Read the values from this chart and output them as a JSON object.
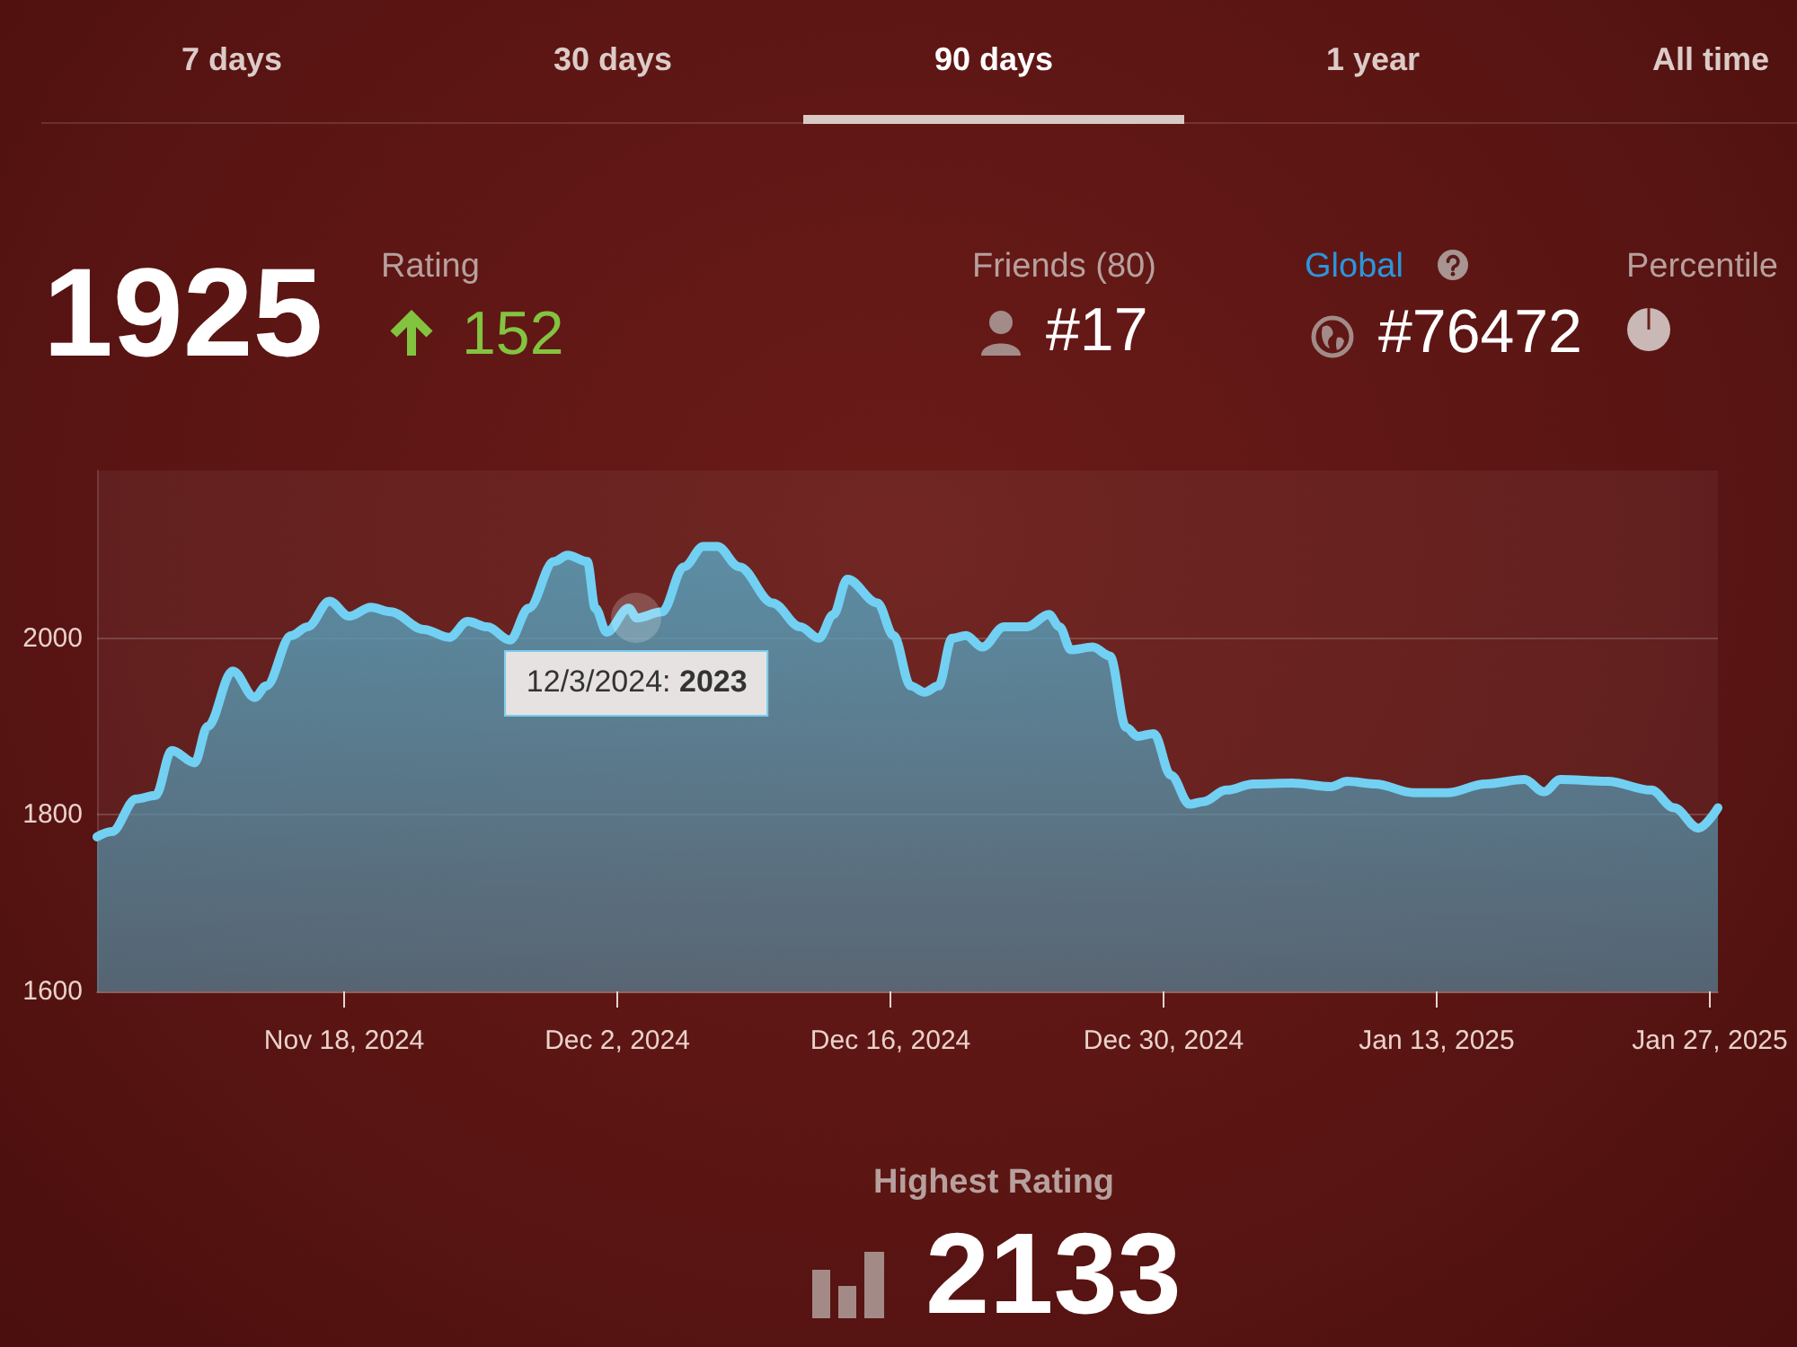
{
  "chart_data": {
    "type": "area",
    "color": "#72d0f3",
    "x": [
      "2024-11-05T08:00",
      "2024-11-06T02:00",
      "2024-11-07T08:00",
      "2024-11-08T08:00",
      "2024-11-09T04:00",
      "2024-11-10T08:00",
      "2024-11-11T00:00",
      "2024-11-12T07:00",
      "2024-11-13T10:00",
      "2024-11-14T00:00",
      "2024-11-15T07:00",
      "2024-11-16T03:00",
      "2024-11-17T06:00",
      "2024-11-18T06:00",
      "2024-11-19T09:00",
      "2024-11-20T09:00",
      "2024-11-22T02:00",
      "2024-11-23T09:00",
      "2024-11-24T08:00",
      "2024-11-25T08:00",
      "2024-11-26T12:00",
      "2024-11-27T11:00",
      "2024-11-28T18:00",
      "2024-11-29T11:00",
      "2024-11-30T11:00",
      "2024-11-30T21:00",
      "2024-12-01T11:00",
      "2024-12-02T14:00",
      "2024-12-03T00:00",
      "2024-12-04T07:00",
      "2024-12-05T10:00",
      "2024-12-06T10:00",
      "2024-12-07T03:00",
      "2024-12-08T06:00",
      "2024-12-09T23:00",
      "2024-12-11T09:00",
      "2024-12-12T08:00",
      "2024-12-13T02:00",
      "2024-12-13T19:00",
      "2024-12-15T08:00",
      "2024-12-16T04:00",
      "2024-12-17T01:00",
      "2024-12-17T18:00",
      "2024-12-18T11:00",
      "2024-12-19T04:00",
      "2024-12-19T21:00",
      "2024-12-20T17:00",
      "2024-12-21T20:00",
      "2024-12-23T00:00",
      "2024-12-24T03:00",
      "2024-12-24T16:00",
      "2024-12-25T06:00",
      "2024-12-26T09:00",
      "2024-12-27T06:00",
      "2024-12-28T02:00",
      "2024-12-28T16:00",
      "2024-12-29T12:00",
      "2024-12-30T09:00",
      "2024-12-31T08:00",
      "2025-01-01T01:00",
      "2025-01-02T05:00",
      "2025-01-03T15:00",
      "2025-01-05T14:00",
      "2025-01-07T14:00",
      "2025-01-08T10:00",
      "2025-01-09T20:00",
      "2025-01-11T20:00",
      "2025-01-13T13:00",
      "2025-01-15T12:00",
      "2025-01-17T12:00",
      "2025-01-18T12:00",
      "2025-01-19T08:00",
      "2025-01-21T18:00",
      "2025-01-24T00:00",
      "2025-01-25T04:00",
      "2025-01-26T10:00",
      "2025-01-27T10:00"
    ],
    "values": [
      1775,
      1781,
      1818,
      1822,
      1873,
      1859,
      1900,
      1963,
      1933,
      1946,
      2003,
      2013,
      2042,
      2025,
      2035,
      2030,
      2010,
      2001,
      2019,
      2013,
      1998,
      2034,
      2087,
      2094,
      2087,
      2034,
      2007,
      2034,
      2023,
      2030,
      2081,
      2104,
      2104,
      2081,
      2040,
      2013,
      2000,
      2027,
      2067,
      2040,
      2003,
      1946,
      1939,
      1946,
      2000,
      2003,
      1990,
      2013,
      2013,
      2027,
      2013,
      1987,
      1990,
      1980,
      1899,
      1889,
      1892,
      1845,
      1812,
      1815,
      1828,
      1835,
      1836,
      1832,
      1838,
      1835,
      1825,
      1825,
      1835,
      1840,
      1826,
      1840,
      1838,
      1828,
      1808,
      1785,
      1808
    ],
    "xlim": [
      "2024-11-05T08:00",
      "2025-01-27T10:00"
    ],
    "xticks": [
      {
        "value": "2024-11-18",
        "label": "Nov 18, 2024"
      },
      {
        "value": "2024-12-02",
        "label": "Dec 2, 2024"
      },
      {
        "value": "2024-12-16",
        "label": "Dec 16, 2024"
      },
      {
        "value": "2024-12-30",
        "label": "Dec 30, 2024"
      },
      {
        "value": "2025-01-13",
        "label": "Jan 13, 2025"
      },
      {
        "value": "2025-01-27",
        "label": "Jan 27, 2025"
      }
    ],
    "ylim": [
      1600,
      2190
    ],
    "yticks": [
      1600,
      1800,
      2000
    ],
    "grid": "y",
    "annotations": [
      "7 days",
      "30 days",
      "90 days",
      "1 year",
      "All time",
      "1925",
      "Rating",
      "152",
      "Friends (80)",
      "#17",
      "Global",
      "#76472",
      "Percentile",
      "Highest Rating",
      "2133",
      {
        "text": "12/3/2024: 2023",
        "x": "2024-12-03",
        "y": 2023
      }
    ]
  }
}
